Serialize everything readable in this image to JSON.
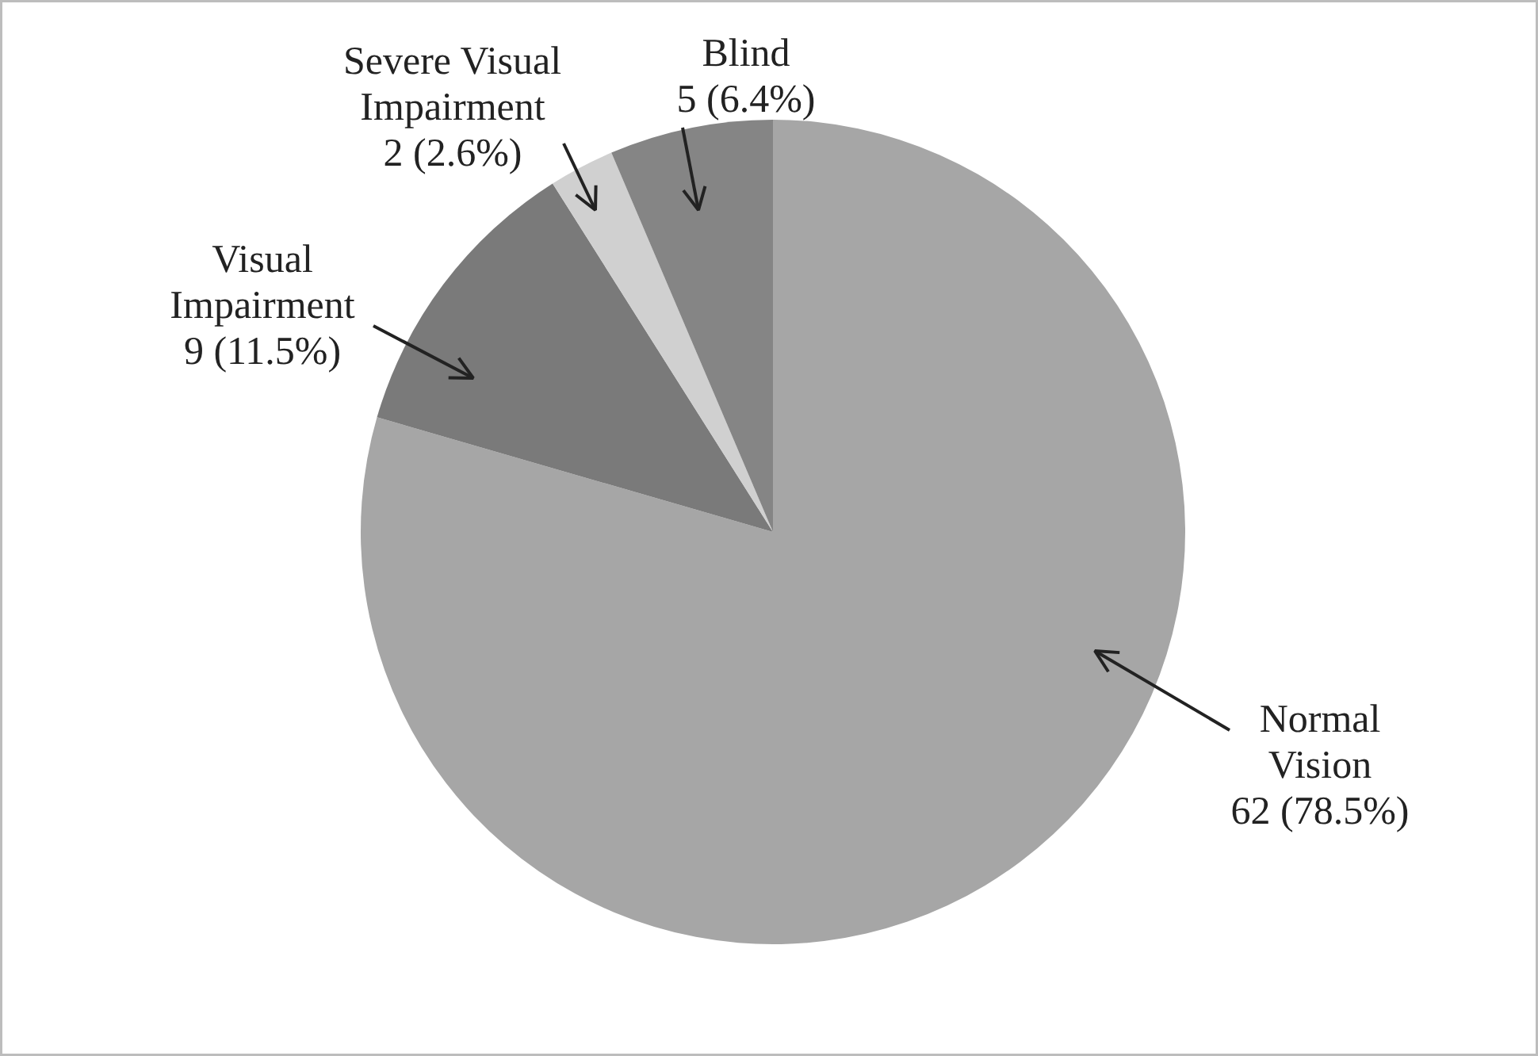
{
  "chart_data": {
    "type": "pie",
    "categories": [
      "Normal Vision",
      "Visual Impairment",
      "Severe Visual Impairment",
      "Blind"
    ],
    "values": [
      62,
      9,
      2,
      5
    ],
    "value_labels": [
      "62 (78.5%)",
      "9 (11.5%)",
      "2 (2.6%)",
      "5 (6.4%)"
    ],
    "colors": [
      "#a6a6a6",
      "#7a7a7a",
      "#d0d0d0",
      "#858585"
    ]
  }
}
